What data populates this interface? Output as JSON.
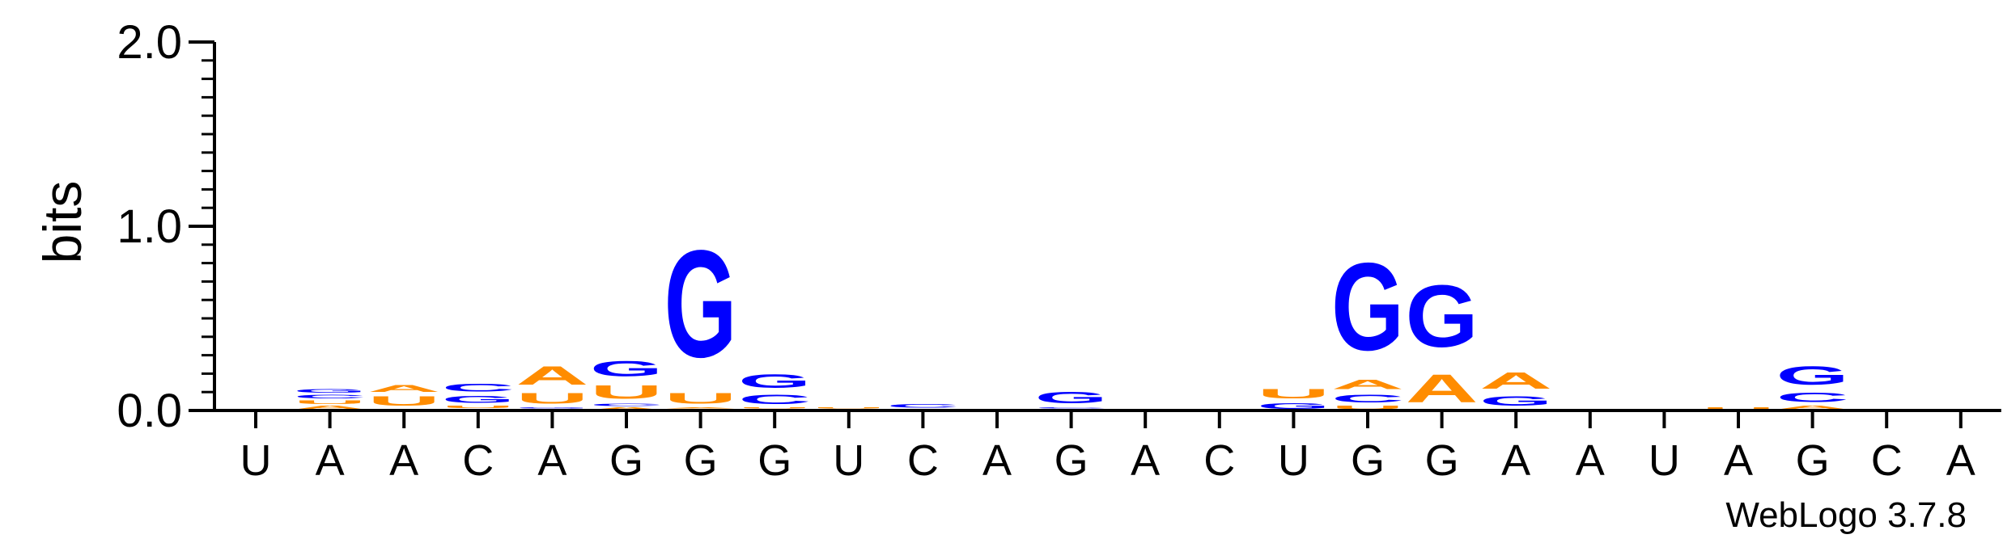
{
  "chart_data": {
    "type": "sequence-logo",
    "ylabel": "bits",
    "ylim": [
      0,
      2.0
    ],
    "yticks": [
      "0.0",
      "1.0",
      "2.0"
    ],
    "credit": "WebLogo 3.7.8",
    "colors": {
      "A": "#ff8c00",
      "C": "#0000ff",
      "G": "#0000ff",
      "U": "#ff8c00"
    },
    "positions": [
      {
        "label": "U",
        "stack": []
      },
      {
        "label": "A",
        "stack": [
          [
            "A",
            0.03
          ],
          [
            "U",
            0.03
          ],
          [
            "C",
            0.03
          ],
          [
            "G",
            0.03
          ]
        ]
      },
      {
        "label": "A",
        "stack": [
          [
            "C",
            0.01
          ],
          [
            "U",
            0.08
          ],
          [
            "A",
            0.06
          ]
        ]
      },
      {
        "label": "C",
        "stack": [
          [
            "A",
            0.01
          ],
          [
            "U",
            0.02
          ],
          [
            "G",
            0.06
          ],
          [
            "C",
            0.07
          ]
        ]
      },
      {
        "label": "A",
        "stack": [
          [
            "C",
            0.01
          ],
          [
            "G",
            0.01
          ],
          [
            "U",
            0.09
          ],
          [
            "A",
            0.16
          ]
        ]
      },
      {
        "label": "G",
        "stack": [
          [
            "A",
            0.02
          ],
          [
            "C",
            0.02
          ],
          [
            "U",
            0.12
          ],
          [
            "G",
            0.13
          ]
        ]
      },
      {
        "label": "G",
        "stack": [
          [
            "C",
            0.01
          ],
          [
            "A",
            0.01
          ],
          [
            "U",
            0.09
          ],
          [
            "G",
            0.93
          ]
        ]
      },
      {
        "label": "G",
        "stack": [
          [
            "A",
            0.01
          ],
          [
            "U",
            0.01
          ],
          [
            "C",
            0.08
          ],
          [
            "G",
            0.12
          ]
        ]
      },
      {
        "label": "U",
        "stack": [
          [
            "C",
            0.01
          ],
          [
            "U",
            0.01
          ]
        ]
      },
      {
        "label": "C",
        "stack": [
          [
            "A",
            0.01
          ],
          [
            "C",
            0.03
          ]
        ]
      },
      {
        "label": "A",
        "stack": [
          [
            "G",
            0.01
          ]
        ]
      },
      {
        "label": "G",
        "stack": [
          [
            "A",
            0.01
          ],
          [
            "C",
            0.01
          ],
          [
            "G",
            0.1
          ]
        ]
      },
      {
        "label": "A",
        "stack": [
          [
            "U",
            0.01
          ]
        ]
      },
      {
        "label": "C",
        "stack": [
          [
            "G",
            0.01
          ]
        ]
      },
      {
        "label": "U",
        "stack": [
          [
            "G",
            0.05
          ],
          [
            "U",
            0.08
          ]
        ]
      },
      {
        "label": "G",
        "stack": [
          [
            "U",
            0.03
          ],
          [
            "C",
            0.07
          ],
          [
            "A",
            0.08
          ],
          [
            "G",
            0.76
          ]
        ]
      },
      {
        "label": "G",
        "stack": [
          [
            "A",
            0.24
          ],
          [
            "G",
            0.54
          ]
        ]
      },
      {
        "label": "A",
        "stack": [
          [
            "C",
            0.01
          ],
          [
            "G",
            0.08
          ],
          [
            "A",
            0.14
          ]
        ]
      },
      {
        "label": "A",
        "stack": []
      },
      {
        "label": "U",
        "stack": []
      },
      {
        "label": "A",
        "stack": [
          [
            "U",
            0.02
          ]
        ]
      },
      {
        "label": "G",
        "stack": [
          [
            "A",
            0.03
          ],
          [
            "C",
            0.08
          ],
          [
            "G",
            0.16
          ]
        ]
      },
      {
        "label": "C",
        "stack": [
          [
            "U",
            0.01
          ]
        ]
      },
      {
        "label": "A",
        "stack": []
      }
    ]
  }
}
